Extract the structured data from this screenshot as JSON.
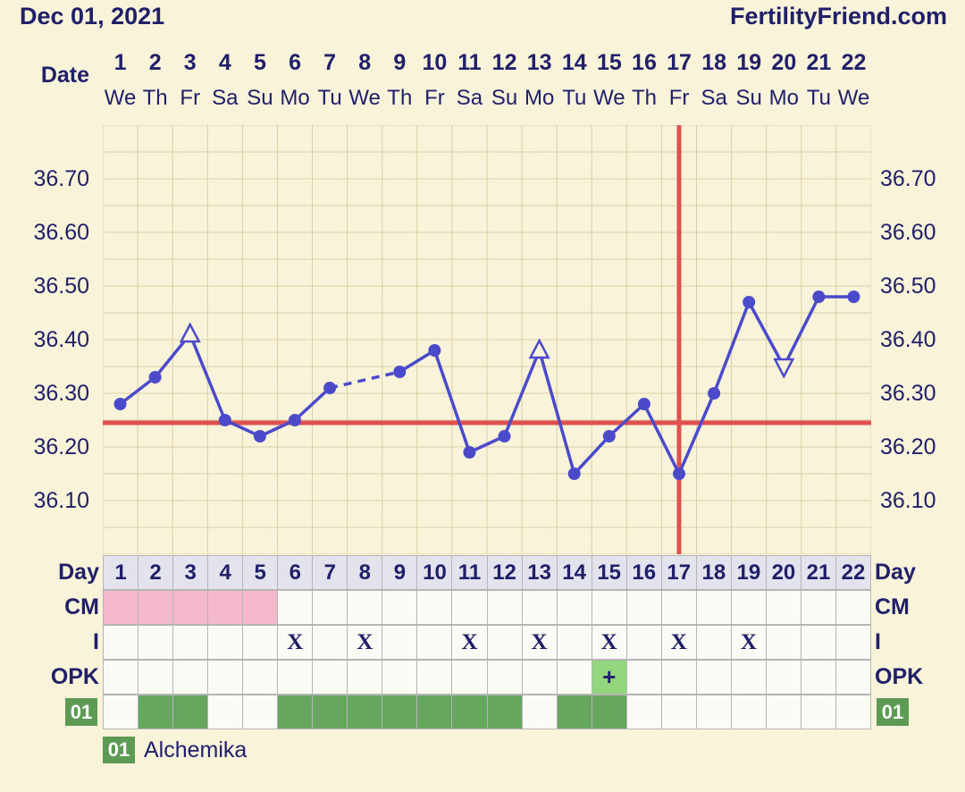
{
  "header": {
    "date": "Dec 01, 2021",
    "site": "FertilityFriend.com"
  },
  "date_header": {
    "label": "Date",
    "day_numbers": [
      1,
      2,
      3,
      4,
      5,
      6,
      7,
      8,
      9,
      10,
      11,
      12,
      13,
      14,
      15,
      16,
      17,
      18,
      19,
      20,
      21,
      22
    ],
    "day_names": [
      "We",
      "Th",
      "Fr",
      "Sa",
      "Su",
      "Mo",
      "Tu",
      "We",
      "Th",
      "Fr",
      "Sa",
      "Su",
      "Mo",
      "Tu",
      "We",
      "Th",
      "Fr",
      "Sa",
      "Su",
      "Mo",
      "Tu",
      "We"
    ]
  },
  "chart_data": {
    "type": "line",
    "title": "",
    "xlabel": "Date",
    "ylabel": "",
    "x_days": [
      1,
      2,
      3,
      4,
      5,
      6,
      7,
      8,
      9,
      10,
      11,
      12,
      13,
      14,
      15,
      16,
      17,
      18,
      19,
      20,
      21,
      22
    ],
    "temps": [
      36.28,
      36.33,
      36.41,
      36.25,
      36.22,
      36.25,
      36.31,
      null,
      36.34,
      36.38,
      36.19,
      36.22,
      36.38,
      36.15,
      36.22,
      36.28,
      36.15,
      36.3,
      36.47,
      36.35,
      36.48,
      36.48
    ],
    "markers": {
      "3": "triangle-up",
      "13": "triangle-up",
      "20": "triangle-down"
    },
    "dashed_gap_between": [
      7,
      9
    ],
    "coverline": 36.245,
    "ovulation_line_day": 17,
    "ylim": [
      36.0,
      36.8
    ],
    "y_minor_step": 0.05,
    "y_tick_values": [
      36.7,
      36.6,
      36.5,
      36.4,
      36.3,
      36.2,
      36.1
    ],
    "y_tick_labels": [
      "36.70",
      "36.60",
      "36.50",
      "36.40",
      "36.30",
      "36.20",
      "36.10"
    ],
    "grid": true,
    "legend_position": "none"
  },
  "table": {
    "day_row": {
      "label": "Day",
      "numbers": [
        1,
        2,
        3,
        4,
        5,
        6,
        7,
        8,
        9,
        10,
        11,
        12,
        13,
        14,
        15,
        16,
        17,
        18,
        19,
        20,
        21,
        22
      ]
    },
    "cm_row": {
      "label": "CM",
      "filled_days": [
        1,
        2,
        3,
        4,
        5
      ]
    },
    "intercourse_row": {
      "label": "I",
      "symbol": "X",
      "days": [
        6,
        8,
        11,
        13,
        15,
        17,
        19
      ]
    },
    "opk_row": {
      "label": "OPK",
      "symbol": "+",
      "positive_days": [
        15
      ]
    },
    "med_row": {
      "label": "01",
      "days": [
        2,
        3,
        6,
        7,
        8,
        9,
        10,
        11,
        12,
        14,
        15
      ]
    }
  },
  "legend": {
    "badge": "01",
    "name": "Alchemika"
  },
  "colors": {
    "background": "#f9f3da",
    "text_navy": "#20206a",
    "grid": "#d9cfa4",
    "temp_line": "#4a4acb",
    "red_line": "#e05050",
    "cm_pink": "#f3b8cb",
    "opk_green": "#93d67e",
    "med_green": "#67a65f",
    "badge_green": "#5d9b54",
    "day_row_bg": "#e3e3ed",
    "cell_bg": "#fbfbf5",
    "cell_border": "#b5b5b5"
  }
}
